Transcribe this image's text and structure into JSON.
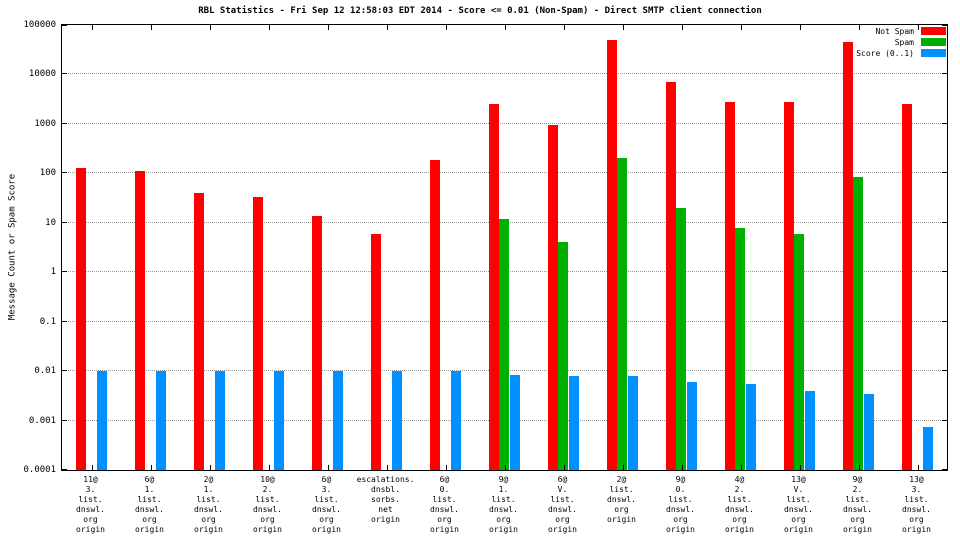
{
  "chart_data": {
    "type": "bar",
    "title": "RBL Statistics - Fri Sep 12 12:58:03 EDT 2014 - Score <= 0.01 (Non-Spam) - Direct SMTP client connection",
    "ylabel": "Message Count or Spam Score",
    "xlabel": "",
    "yscale": "log",
    "ylim": [
      0.0001,
      100000
    ],
    "yticks": [
      "100000",
      "10000",
      "1000",
      "100",
      "10",
      "1",
      "0.1",
      "0.01",
      "0.001",
      "0.0001"
    ],
    "grid": "horizontal-dotted",
    "legend_position": "top-right",
    "categories": [
      [
        "11@",
        "3.",
        "list.",
        "dnswl.",
        "org",
        "origin"
      ],
      [
        "6@",
        "1.",
        "list.",
        "dnswl.",
        "org",
        "origin"
      ],
      [
        "2@",
        "1.",
        "list.",
        "dnswl.",
        "org",
        "origin"
      ],
      [
        "10@",
        "2.",
        "list.",
        "dnswl.",
        "org",
        "origin"
      ],
      [
        "6@",
        "3.",
        "list.",
        "dnswl.",
        "org",
        "origin"
      ],
      [
        "escalations.",
        "dnsbl.",
        "sorbs.",
        "net",
        "origin"
      ],
      [
        "6@",
        "0.",
        "list.",
        "dnswl.",
        "org",
        "origin"
      ],
      [
        "9@",
        "1.",
        "list.",
        "dnswl.",
        "org",
        "origin"
      ],
      [
        "6@",
        "V.",
        "list.",
        "dnswl.",
        "org",
        "origin"
      ],
      [
        "2@",
        "list.",
        "dnswl.",
        "org",
        "origin"
      ],
      [
        "9@",
        "0.",
        "list.",
        "dnswl.",
        "org",
        "origin"
      ],
      [
        "4@",
        "2.",
        "list.",
        "dnswl.",
        "org",
        "origin"
      ],
      [
        "13@",
        "V.",
        "list.",
        "dnswl.",
        "org",
        "origin"
      ],
      [
        "9@",
        "2.",
        "list.",
        "dnswl.",
        "org",
        "origin"
      ],
      [
        "13@",
        "3.",
        "list.",
        "dnswl.",
        "org",
        "origin"
      ]
    ],
    "series": [
      {
        "name": "Not Spam",
        "color": "#ff0000",
        "values": [
          130,
          110,
          40,
          33,
          14,
          6,
          190,
          2500,
          950,
          50000,
          7000,
          2800,
          2800,
          45000,
          2500
        ]
      },
      {
        "name": "Spam",
        "color": "#00b000",
        "values": [
          null,
          null,
          null,
          null,
          null,
          null,
          null,
          12,
          4,
          200,
          20,
          8,
          6,
          85,
          null
        ]
      },
      {
        "name": "Score (0..1)",
        "color": "#0090ff",
        "values": [
          0.01,
          0.01,
          0.01,
          0.01,
          0.01,
          0.01,
          0.01,
          0.0085,
          0.008,
          0.008,
          0.006,
          0.0055,
          0.004,
          0.0035,
          0.00075
        ]
      }
    ]
  }
}
